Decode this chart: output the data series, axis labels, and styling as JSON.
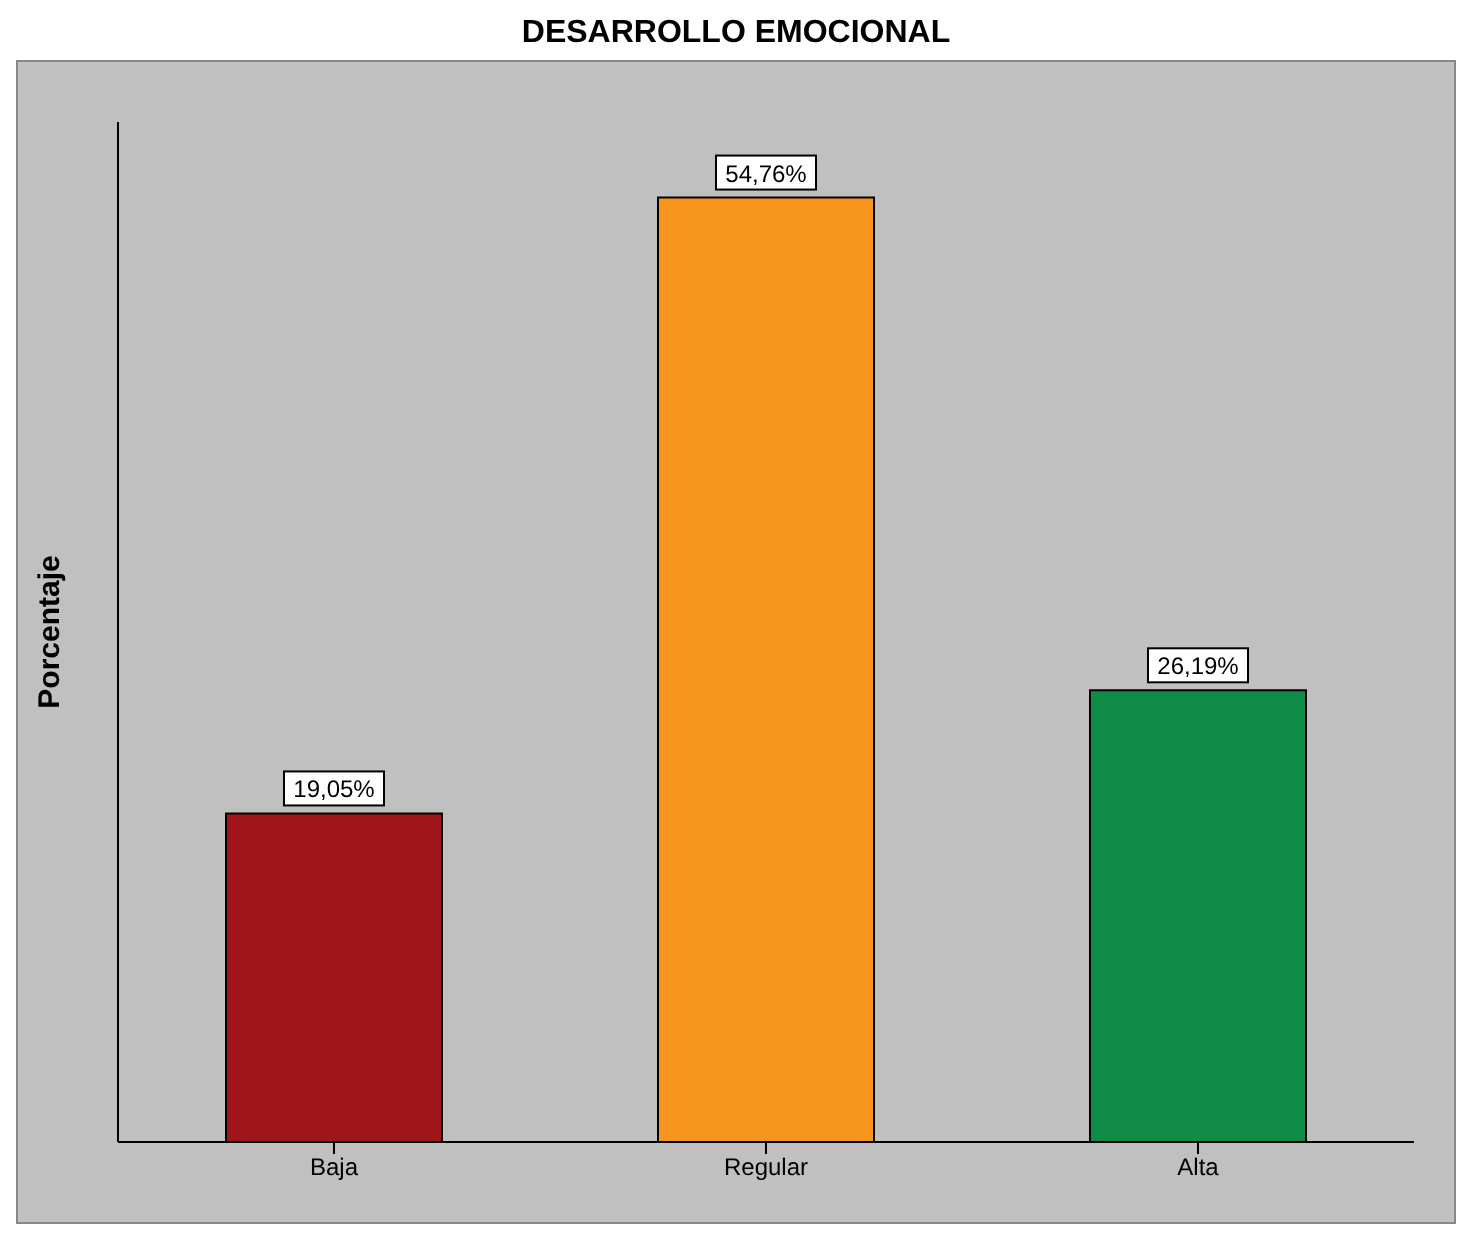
{
  "chart_data": {
    "type": "bar",
    "title": "DESARROLLO EMOCIONAL",
    "ylabel": "Porcentaje",
    "categories": [
      "Baja",
      "Regular",
      "Alta"
    ],
    "values": [
      19.05,
      54.76,
      26.19
    ],
    "colors": [
      "#a0161a",
      "#f7951d",
      "#0f8c47"
    ],
    "value_labels": [
      "19,05%",
      "54,76%",
      "26,19%"
    ]
  }
}
